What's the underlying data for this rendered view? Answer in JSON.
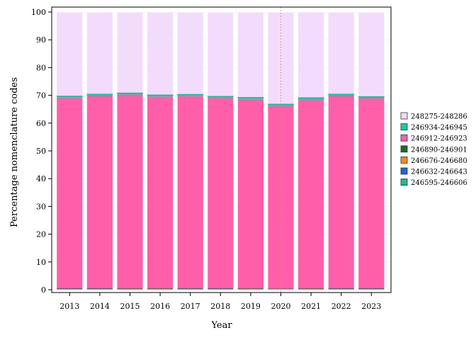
{
  "chart_data": {
    "type": "bar",
    "stacked": true,
    "title": "",
    "xlabel": "Year",
    "ylabel": "Percentage nomenclature codes",
    "ylim": [
      0,
      100
    ],
    "yticks": [
      0,
      10,
      20,
      30,
      40,
      50,
      60,
      70,
      80,
      90,
      100
    ],
    "grid": false,
    "legend_position": "right",
    "categories": [
      "2013",
      "2014",
      "2015",
      "2016",
      "2017",
      "2018",
      "2019",
      "2020",
      "2021",
      "2022",
      "2023"
    ],
    "annotations": [
      {
        "type": "vertical-dotted-line",
        "x": "2020",
        "color": "#e08080"
      }
    ],
    "series": [
      {
        "name": "246595-246606",
        "color": "#1dbf85",
        "values": [
          0.1,
          0.1,
          0.1,
          0.1,
          0.1,
          0.1,
          0.1,
          0.1,
          0.1,
          0.1,
          0.1
        ]
      },
      {
        "name": "246632-246643",
        "color": "#1f66cc",
        "values": [
          0.4,
          0.4,
          0.3,
          0.3,
          0.4,
          0.4,
          0.3,
          0.2,
          0.3,
          0.4,
          0.4
        ]
      },
      {
        "name": "246676-246680",
        "color": "#f28a1f",
        "values": [
          0.05,
          0.05,
          0.05,
          0.05,
          0.05,
          0.05,
          0.05,
          0.05,
          0.05,
          0.05,
          0.05
        ]
      },
      {
        "name": "246890-246901",
        "color": "#1a6b30",
        "values": [
          0.05,
          0.05,
          0.05,
          0.05,
          0.05,
          0.05,
          0.05,
          0.05,
          0.05,
          0.05,
          0.05
        ]
      },
      {
        "name": "246912-246923",
        "color": "#ff5fa8",
        "values": [
          68.6,
          69.3,
          69.8,
          69.1,
          69.2,
          68.5,
          68.2,
          65.9,
          68.1,
          69.3,
          68.4
        ]
      },
      {
        "name": "246934-246945",
        "color": "#17c9a8",
        "values": [
          0.5,
          0.5,
          0.5,
          0.5,
          0.5,
          0.5,
          0.5,
          0.5,
          0.5,
          0.5,
          0.5
        ]
      },
      {
        "name": "248275-248286",
        "color": "#f3dcfb",
        "values": [
          30.3,
          29.6,
          29.2,
          29.9,
          29.7,
          30.4,
          30.8,
          33.2,
          30.95,
          29.6,
          30.5
        ]
      }
    ]
  }
}
